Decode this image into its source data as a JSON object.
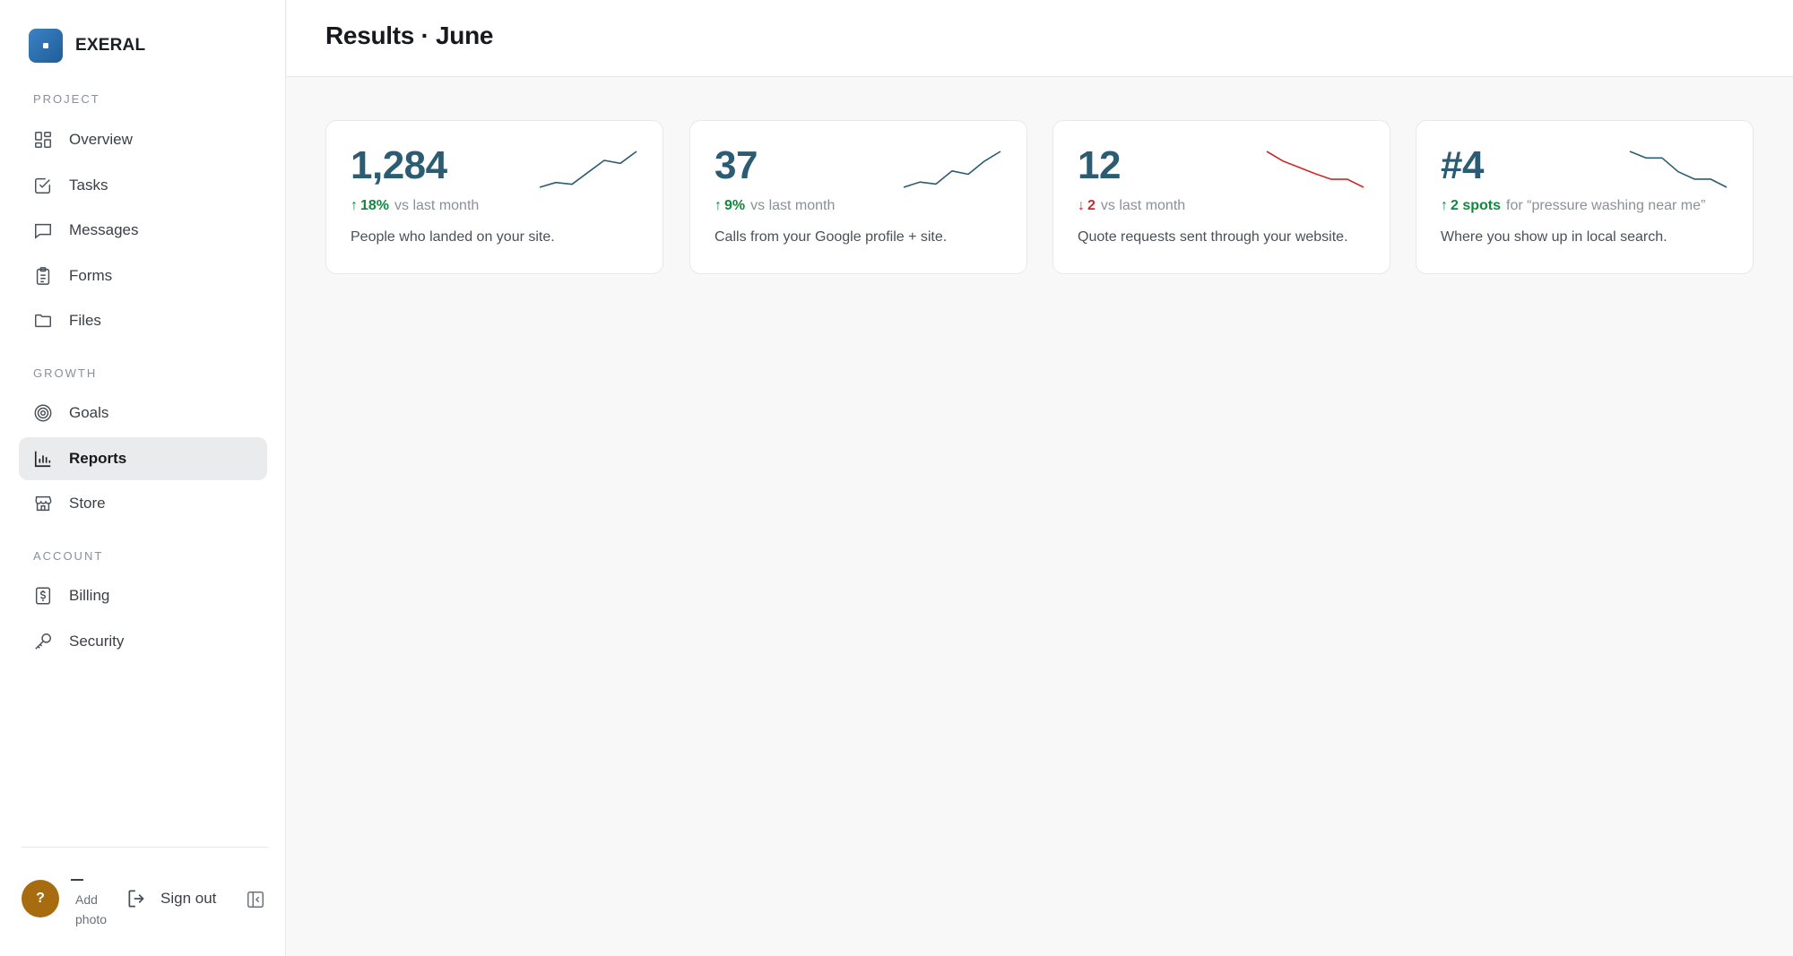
{
  "brand": {
    "name": "EXERAL"
  },
  "sidebar": {
    "sections": [
      {
        "label": "PROJECT"
      },
      {
        "label": "GROWTH"
      },
      {
        "label": "ACCOUNT"
      }
    ],
    "items": [
      {
        "label": "Overview",
        "icon": "grid-icon"
      },
      {
        "label": "Tasks",
        "icon": "checkbox-icon"
      },
      {
        "label": "Messages",
        "icon": "message-icon"
      },
      {
        "label": "Forms",
        "icon": "clipboard-icon"
      },
      {
        "label": "Files",
        "icon": "folder-icon"
      },
      {
        "label": "Goals",
        "icon": "target-icon"
      },
      {
        "label": "Reports",
        "icon": "bar-chart-icon",
        "active": true
      },
      {
        "label": "Store",
        "icon": "store-icon"
      },
      {
        "label": "Billing",
        "icon": "dollar-receipt-icon"
      },
      {
        "label": "Security",
        "icon": "key-icon"
      }
    ]
  },
  "user": {
    "avatar_initial": "?",
    "add_photo": "Add photo",
    "signout_label": "Sign out"
  },
  "header": {
    "title": "Results · June"
  },
  "cards": [
    {
      "value": "1,284",
      "delta": "18%",
      "direction": "up",
      "context": "vs last month",
      "description": "People who landed on your site.",
      "trend": [
        2,
        2.8,
        2.5,
        4.5,
        6.5,
        6,
        8
      ]
    },
    {
      "value": "37",
      "delta": "9%",
      "direction": "up",
      "context": "vs last month",
      "description": "Calls from your Google profile + site.",
      "trend": [
        2,
        2.8,
        2.5,
        4.5,
        4,
        6,
        7.5
      ]
    },
    {
      "value": "12",
      "delta": "2",
      "direction": "down",
      "context": "vs last month",
      "description": "Quote requests sent through your website.",
      "trend": [
        8,
        6.8,
        6,
        5.2,
        4.5,
        4.5,
        3.5
      ]
    },
    {
      "value": "#4",
      "delta": "2 spots",
      "direction": "up",
      "context": "for “pressure washing near me”",
      "description": "Where you show up in local search.",
      "trend": [
        8,
        7.2,
        7.2,
        5.5,
        4.6,
        4.6,
        3.6
      ]
    }
  ],
  "colors": {
    "accent": "#2b5c73",
    "positive": "#12883e",
    "negative": "#cc2a2a",
    "brand": "#2f74b5",
    "avatar": "#a86c10"
  }
}
